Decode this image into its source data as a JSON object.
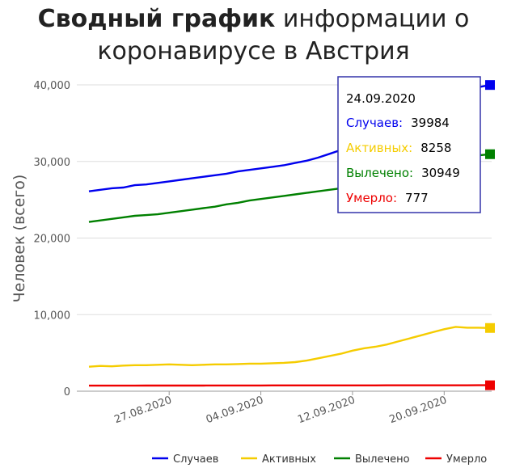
{
  "title": {
    "bold": "Сводный график",
    "line1_rest": " информации о",
    "line2": "коронавирусе в Австрия"
  },
  "chart_data": {
    "type": "line",
    "ylabel": "Человек (всего)",
    "xlabel": "",
    "ylim": [
      0,
      40000
    ],
    "yticks": [
      "0",
      "10,000",
      "20,000",
      "30,000",
      "40,000"
    ],
    "ytick_values": [
      0,
      10000,
      20000,
      30000,
      40000
    ],
    "xticks": [
      "27.08.2020",
      "04.09.2020",
      "12.09.2020",
      "20.09.2020"
    ],
    "x_start": "2020-08-20",
    "x_end": "2020-09-24",
    "grid": true,
    "legend_position": "bottom",
    "series": [
      {
        "name": "Случаев",
        "color": "#0000ee",
        "values": [
          26100,
          26300,
          26500,
          26600,
          26900,
          27000,
          27200,
          27400,
          27600,
          27800,
          28000,
          28200,
          28400,
          28700,
          28900,
          29100,
          29300,
          29500,
          29800,
          30100,
          30500,
          31000,
          31500,
          32000,
          32600,
          33100,
          33800,
          34500,
          35200,
          35900,
          36700,
          37500,
          38300,
          39100,
          39700,
          39984
        ]
      },
      {
        "name": "Активных",
        "color": "#f5cc00",
        "values": [
          3200,
          3300,
          3250,
          3350,
          3400,
          3400,
          3450,
          3500,
          3450,
          3400,
          3450,
          3500,
          3500,
          3550,
          3600,
          3600,
          3650,
          3700,
          3800,
          4000,
          4300,
          4600,
          4900,
          5300,
          5600,
          5800,
          6100,
          6500,
          6900,
          7300,
          7700,
          8100,
          8400,
          8300,
          8300,
          8258
        ]
      },
      {
        "name": "Вылечено",
        "color": "#008000",
        "values": [
          22100,
          22300,
          22500,
          22700,
          22900,
          23000,
          23100,
          23300,
          23500,
          23700,
          23900,
          24100,
          24400,
          24600,
          24900,
          25100,
          25300,
          25500,
          25700,
          25900,
          26100,
          26300,
          26500,
          26700,
          26900,
          27200,
          27600,
          28000,
          28500,
          28900,
          29300,
          29700,
          30100,
          30500,
          30800,
          30949
        ]
      },
      {
        "name": "Умерло",
        "color": "#ee0000",
        "values": [
          730,
          730,
          731,
          732,
          733,
          734,
          735,
          737,
          739,
          741,
          743,
          745,
          747,
          749,
          751,
          753,
          755,
          757,
          758,
          759,
          760,
          761,
          762,
          763,
          764,
          765,
          766,
          767,
          768,
          769,
          770,
          771,
          772,
          774,
          776,
          777
        ]
      }
    ]
  },
  "tooltip": {
    "date": "24.09.2020",
    "rows": [
      {
        "label": "Случаев:",
        "value": "39984",
        "color": "#0000ee"
      },
      {
        "label": "Активных:",
        "value": "8258",
        "color": "#f5cc00"
      },
      {
        "label": "Вылечено:",
        "value": "30949",
        "color": "#008000"
      },
      {
        "label": "Умерло:",
        "value": "777",
        "color": "#ee0000"
      }
    ]
  }
}
